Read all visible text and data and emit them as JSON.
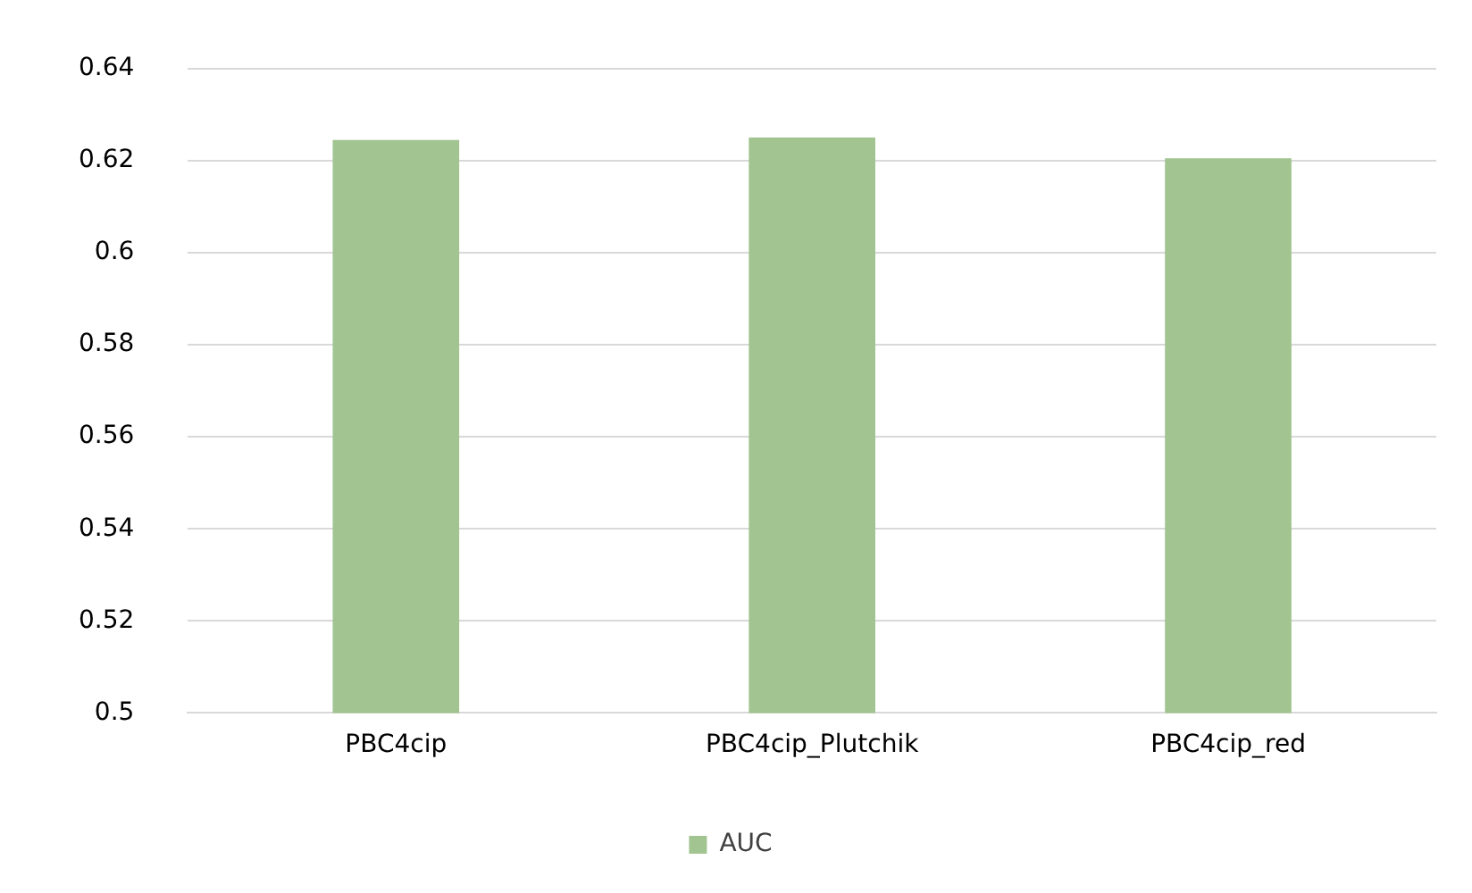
{
  "chart_data": {
    "type": "bar",
    "categories": [
      "PBC4cip",
      "PBC4cip_Plutchik",
      "PBC4cip_red"
    ],
    "series": [
      {
        "name": "AUC",
        "color": "#a1c490",
        "values": [
          0.6245,
          0.625,
          0.6205
        ]
      }
    ],
    "ylim": [
      0.5,
      0.64
    ],
    "yticks": [
      0.5,
      0.52,
      0.54,
      0.56,
      0.58,
      0.6,
      0.62,
      0.64
    ],
    "grid": "y",
    "legend": "bottom"
  }
}
